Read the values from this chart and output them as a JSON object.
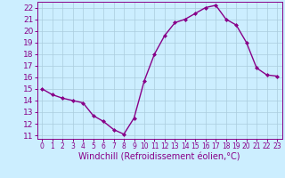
{
  "x": [
    0,
    1,
    2,
    3,
    4,
    5,
    6,
    7,
    8,
    9,
    10,
    11,
    12,
    13,
    14,
    15,
    16,
    17,
    18,
    19,
    20,
    21,
    22,
    23
  ],
  "y": [
    15.0,
    14.5,
    14.2,
    14.0,
    13.8,
    12.7,
    12.2,
    11.5,
    11.1,
    12.5,
    15.7,
    18.0,
    19.6,
    20.7,
    21.0,
    21.5,
    22.0,
    22.2,
    21.0,
    20.5,
    19.0,
    16.8,
    16.2,
    16.1
  ],
  "line_color": "#880088",
  "marker": "D",
  "marker_size": 2.0,
  "xlim": [
    -0.5,
    23.5
  ],
  "ylim": [
    10.7,
    22.5
  ],
  "yticks": [
    11,
    12,
    13,
    14,
    15,
    16,
    17,
    18,
    19,
    20,
    21,
    22
  ],
  "xticks": [
    0,
    1,
    2,
    3,
    4,
    5,
    6,
    7,
    8,
    9,
    10,
    11,
    12,
    13,
    14,
    15,
    16,
    17,
    18,
    19,
    20,
    21,
    22,
    23
  ],
  "xlabel": "Windchill (Refroidissement éolien,°C)",
  "background_color": "#cceeff",
  "grid_color": "#aaccdd",
  "line_width": 1.0,
  "xlabel_fontsize": 7.0,
  "ytick_fontsize": 6.5,
  "xtick_fontsize": 5.5
}
